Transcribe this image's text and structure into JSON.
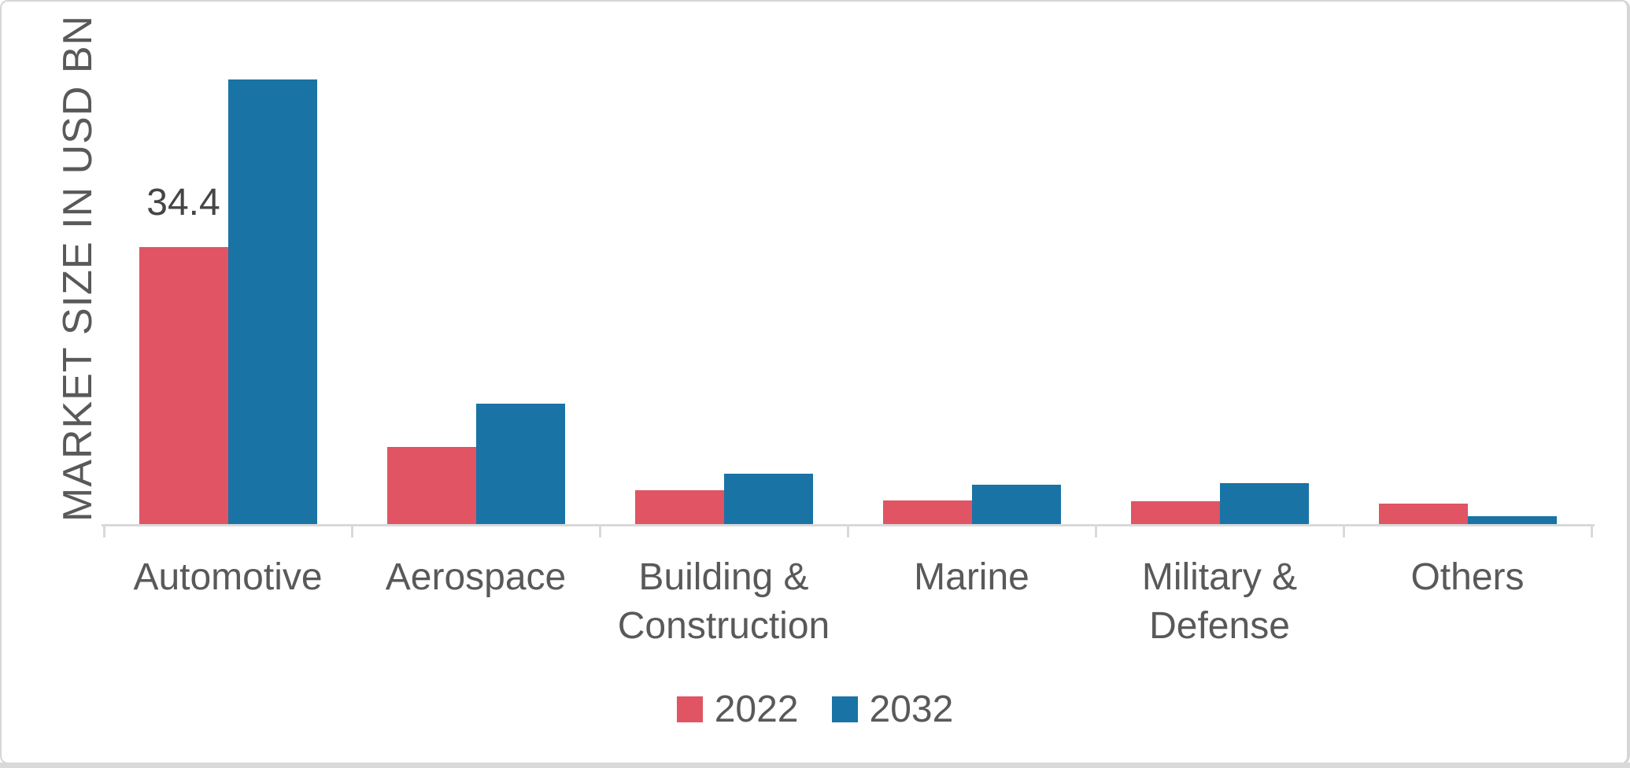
{
  "chart_data": {
    "type": "bar",
    "title": "",
    "xlabel": "",
    "ylabel": "MARKET SIZE IN USD BN",
    "categories": [
      "Automotive",
      "Aerospace",
      "Building & Construction",
      "Marine",
      "Military & Defense",
      "Others"
    ],
    "series": [
      {
        "name": "2022",
        "color": "#e05464",
        "values": [
          34.4,
          9.6,
          4.3,
          3.0,
          2.9,
          2.6
        ]
      },
      {
        "name": "2032",
        "color": "#1974a5",
        "values": [
          55.2,
          15.0,
          6.3,
          5.0,
          5.2,
          1.1
        ]
      }
    ],
    "data_labels": [
      {
        "category_index": 0,
        "series_index": 0,
        "text": "34.4"
      }
    ],
    "legend_position": "bottom",
    "grid": false,
    "y_axis_tick_labels_visible": false,
    "ylim": [
      0,
      55.8
    ],
    "colors": {
      "axis": "#d9d9d9",
      "text": "#595959",
      "frame": "#d6d6d6",
      "background": "#ffffff"
    }
  }
}
